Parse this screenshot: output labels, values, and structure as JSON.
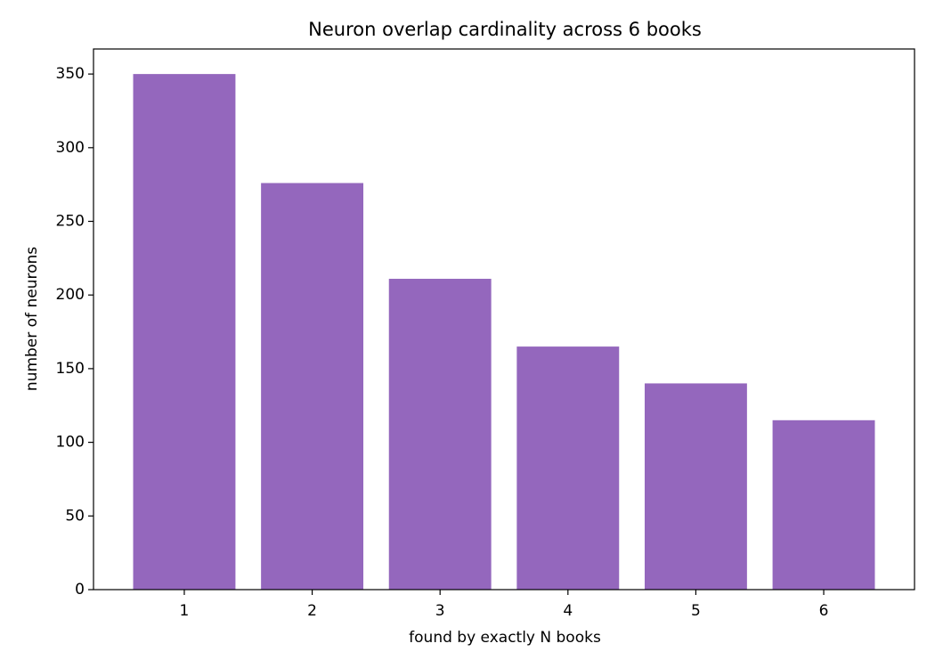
{
  "chart_data": {
    "type": "bar",
    "title": "Neuron overlap cardinality across 6 books",
    "x_label": "found by exactly N books",
    "y_label": "number of neurons",
    "categories": [
      "1",
      "2",
      "3",
      "4",
      "5",
      "6"
    ],
    "values": [
      350,
      276,
      211,
      165,
      140,
      115
    ],
    "color": "#9467bd",
    "ylim": [
      0,
      367
    ],
    "yticks": [
      0,
      50,
      100,
      150,
      200,
      250,
      300,
      350
    ],
    "grid": false
  }
}
